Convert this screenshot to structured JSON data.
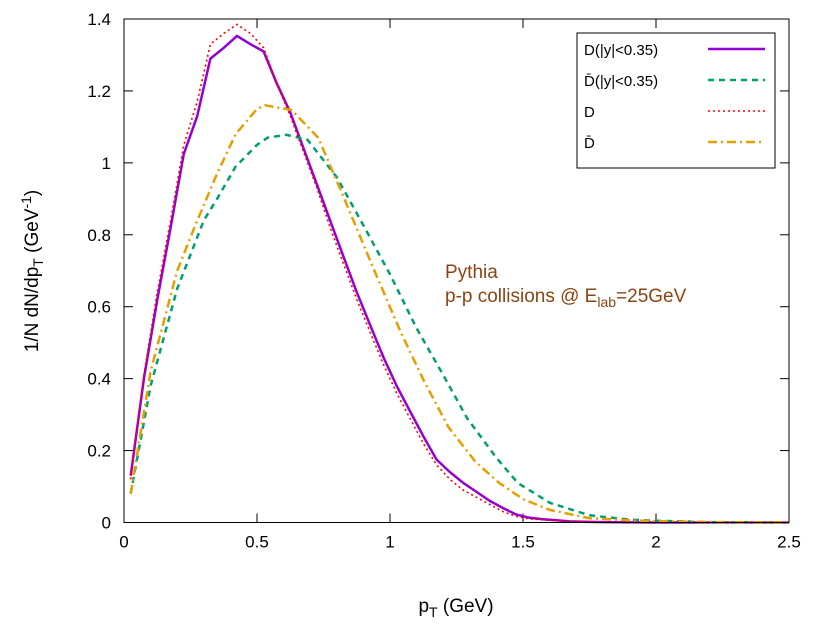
{
  "chart_data": {
    "type": "line",
    "xlabel": {
      "main": "p",
      "sub": "T",
      "rest": " (GeV)"
    },
    "ylabel": {
      "a": "1/N dN/dp",
      "sub": "T",
      "b": " (GeV",
      "sup": "-1",
      "c": ")"
    },
    "xlim": [
      0,
      2.5
    ],
    "ylim": [
      0,
      1.4
    ],
    "xticks": [
      "0",
      "0.5",
      "1",
      "1.5",
      "2",
      "2.5"
    ],
    "yticks": [
      "0",
      "0.2",
      "0.4",
      "0.6",
      "0.8",
      "1",
      "1.2",
      "1.4"
    ],
    "grid": false,
    "legend_position": "top-right",
    "annotation": {
      "line1": "Pythia",
      "line2a": "p-p collisions @ E",
      "line2sub": "lab",
      "line2b": "=25GeV",
      "color": "#8b4513"
    },
    "series": [
      {
        "name": "D(|y|<0.35)",
        "color": "#9400d3",
        "style": "solid",
        "x": [
          0.025,
          0.075,
          0.125,
          0.175,
          0.225,
          0.275,
          0.325,
          0.375,
          0.425,
          0.475,
          0.525,
          0.575,
          0.625,
          0.675,
          0.725,
          0.775,
          0.825,
          0.875,
          0.925,
          0.975,
          1.025,
          1.075,
          1.125,
          1.175,
          1.225,
          1.275,
          1.325,
          1.375,
          1.425,
          1.475,
          1.525,
          1.575,
          1.625,
          1.675,
          1.725,
          1.8,
          2.0,
          2.25,
          2.5
        ],
        "y": [
          0.13,
          0.4,
          0.62,
          0.82,
          1.025,
          1.13,
          1.29,
          1.32,
          1.353,
          1.33,
          1.31,
          1.22,
          1.14,
          1.04,
          0.94,
          0.84,
          0.74,
          0.64,
          0.55,
          0.46,
          0.38,
          0.31,
          0.24,
          0.175,
          0.14,
          0.11,
          0.085,
          0.06,
          0.04,
          0.022,
          0.013,
          0.009,
          0.006,
          0.003,
          0.002,
          0.001,
          0,
          0,
          0
        ]
      },
      {
        "name": "D̄(|y|<0.35)",
        "color": "#009e73",
        "style": "dashed",
        "x": [
          0.025,
          0.1,
          0.2,
          0.3,
          0.35,
          0.42,
          0.5,
          0.54,
          0.61,
          0.69,
          0.8,
          0.89,
          1.0,
          1.1,
          1.2,
          1.29,
          1.4,
          1.48,
          1.6,
          1.75,
          1.9,
          2.0,
          2.2,
          2.5
        ],
        "y": [
          0.08,
          0.38,
          0.65,
          0.84,
          0.9,
          0.99,
          1.05,
          1.07,
          1.078,
          1.064,
          0.96,
          0.84,
          0.69,
          0.54,
          0.41,
          0.29,
          0.18,
          0.11,
          0.055,
          0.02,
          0.008,
          0.005,
          0.001,
          0
        ]
      },
      {
        "name": "D",
        "color": "#ff0000",
        "style": "dotted",
        "x": [
          0.025,
          0.075,
          0.125,
          0.175,
          0.225,
          0.275,
          0.325,
          0.375,
          0.425,
          0.475,
          0.525,
          0.575,
          0.625,
          0.675,
          0.725,
          0.775,
          0.825,
          0.875,
          0.925,
          0.975,
          1.025,
          1.075,
          1.125,
          1.175,
          1.225,
          1.275,
          1.325,
          1.375,
          1.425,
          1.475,
          1.525,
          1.6,
          1.7,
          1.8,
          2.0,
          2.5
        ],
        "y": [
          0.12,
          0.41,
          0.64,
          0.84,
          1.05,
          1.17,
          1.33,
          1.36,
          1.385,
          1.36,
          1.32,
          1.22,
          1.13,
          1.03,
          0.93,
          0.82,
          0.72,
          0.62,
          0.53,
          0.44,
          0.36,
          0.29,
          0.22,
          0.16,
          0.12,
          0.09,
          0.07,
          0.05,
          0.03,
          0.017,
          0.01,
          0.006,
          0.003,
          0.001,
          0,
          0
        ]
      },
      {
        "name": "D̄",
        "color": "#e69f00",
        "style": "dashdot",
        "x": [
          0.025,
          0.1,
          0.2,
          0.27,
          0.35,
          0.42,
          0.5,
          0.53,
          0.63,
          0.73,
          0.82,
          0.93,
          1.04,
          1.13,
          1.22,
          1.32,
          1.41,
          1.5,
          1.6,
          1.75,
          1.9,
          2.0,
          2.2,
          2.5
        ],
        "y": [
          0.08,
          0.42,
          0.7,
          0.83,
          0.97,
          1.08,
          1.15,
          1.16,
          1.147,
          1.07,
          0.915,
          0.72,
          0.53,
          0.39,
          0.265,
          0.17,
          0.11,
          0.065,
          0.035,
          0.012,
          0.006,
          0.004,
          0.001,
          0
        ]
      }
    ]
  }
}
